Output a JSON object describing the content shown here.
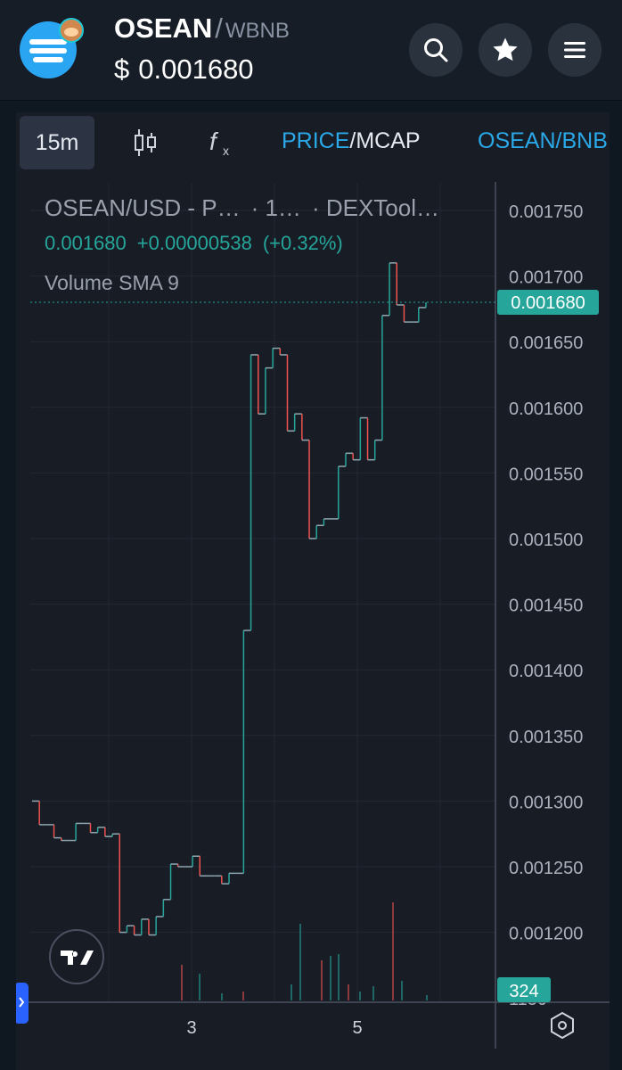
{
  "header": {
    "base_symbol": "OSEAN",
    "separator": "/",
    "quote_symbol": "WBNB",
    "currency": "$",
    "price": "0.001680",
    "icons": [
      "logo-icon",
      "search-icon",
      "star-icon",
      "menu-icon"
    ]
  },
  "toolbar": {
    "timeframe": "15m",
    "price_label": "PRICE",
    "slash": "/",
    "mcap_label": "MCAP",
    "pair_label": "OSEAN/BNB",
    "pair_label_visible": "OSEAN/BNE"
  },
  "legend": {
    "symbol_title": "OSEAN/USD - P…",
    "interval": "· 1…",
    "source": "· DEXTool…",
    "last_value": "0.001680",
    "change": "+0.00000538",
    "change_pct": "(+0.32%)",
    "indicator": "Volume SMA 9"
  },
  "axis": {
    "y_ticks": [
      "0.001750",
      "0.001700",
      "0.001650",
      "0.001600",
      "0.001550",
      "0.001500",
      "0.001450",
      "0.001400",
      "0.001350",
      "0.001300",
      "0.001250",
      "0.001200",
      "1150"
    ],
    "x_ticks": [
      "3",
      "5"
    ],
    "price_tag": "0.001680",
    "volume_tag": "324"
  },
  "colors": {
    "up": "#26a69a",
    "down": "#ef5350",
    "accent_blue": "#2aa8e8",
    "background": "#181c25"
  },
  "chart_data": {
    "type": "line",
    "title": "OSEAN/USD",
    "ylim": [
      0.00114,
      0.00178
    ],
    "y_scale": "linear",
    "grid": true,
    "price_series": {
      "name": "OSEAN/USD",
      "x_labels_visible": [
        "3",
        "5"
      ],
      "values": [
        0.0013,
        0.001282,
        0.001282,
        0.001272,
        0.00127,
        0.00127,
        0.001283,
        0.001283,
        0.001276,
        0.00128,
        0.001273,
        0.001275,
        0.0012,
        0.001205,
        0.001198,
        0.00121,
        0.001198,
        0.001212,
        0.001225,
        0.001252,
        0.00125,
        0.00125,
        0.001258,
        0.001243,
        0.001243,
        0.001243,
        0.001237,
        0.001245,
        0.001245,
        0.00143,
        0.00164,
        0.001595,
        0.00163,
        0.001645,
        0.00164,
        0.001582,
        0.001595,
        0.001575,
        0.0015,
        0.00151,
        0.001515,
        0.001515,
        0.001555,
        0.001565,
        0.00156,
        0.001592,
        0.00156,
        0.001575,
        0.00167,
        0.00171,
        0.001678,
        0.001665,
        0.001665,
        0.001676,
        0.00168
      ]
    },
    "volume_series": {
      "name": "Volume",
      "last": 324
    }
  }
}
